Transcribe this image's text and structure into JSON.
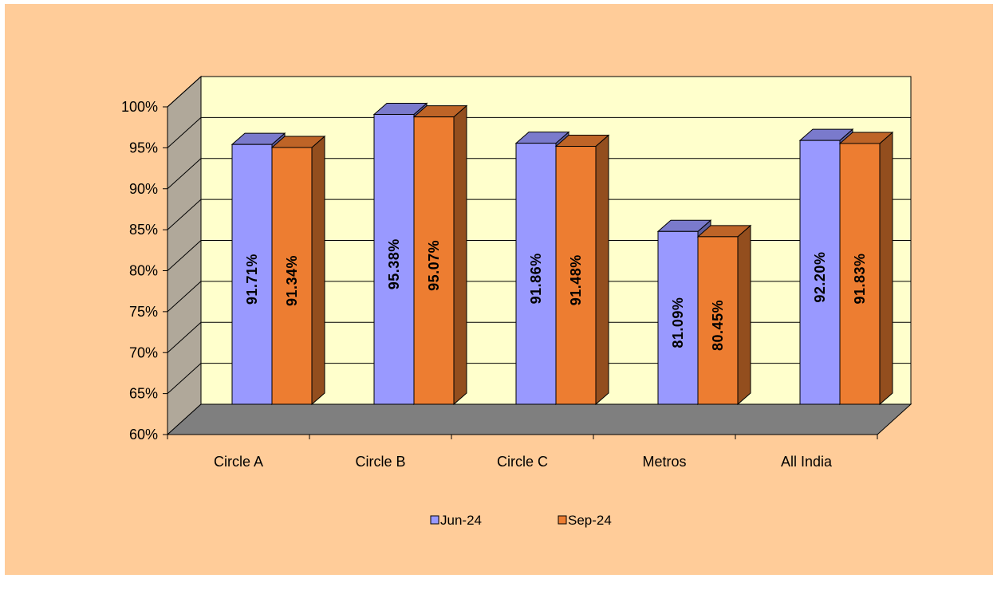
{
  "chart_data": {
    "type": "bar",
    "style": "3d-clustered-column",
    "categories": [
      "Circle A",
      "Circle B",
      "Circle C",
      "Metros",
      "All India"
    ],
    "series": [
      {
        "name": "Jun-24",
        "values": [
          91.71,
          95.38,
          91.86,
          81.09,
          92.2
        ],
        "labels": [
          "91.71%",
          "95.38%",
          "91.86%",
          "81.09%",
          "92.20%"
        ],
        "color": "#9999ff"
      },
      {
        "name": "Sep-24",
        "values": [
          91.34,
          95.07,
          91.48,
          80.45,
          91.83
        ],
        "labels": [
          "91.34%",
          "95.07%",
          "91.48%",
          "80.45%",
          "91.83%"
        ],
        "color": "#ed7d31"
      }
    ],
    "yticks": [
      "60%",
      "65%",
      "70%",
      "75%",
      "80%",
      "85%",
      "90%",
      "95%",
      "100%"
    ],
    "ylim": [
      60,
      100
    ],
    "title": "",
    "xlabel": "",
    "ylabel": "",
    "grid": true,
    "legend_position": "bottom",
    "colors": {
      "background": "#ffcc99",
      "back_wall": "#ffffcc",
      "side_wall": "#b0a89a",
      "floor": "#7f7f7f"
    }
  }
}
